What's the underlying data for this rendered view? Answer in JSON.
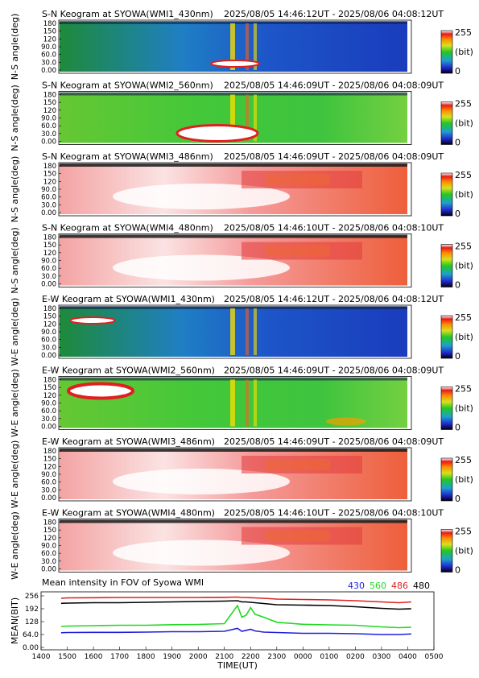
{
  "panels": [
    {
      "title": "S-N Keogram at SYOWA(WMI1_430nm)",
      "range": "2025/08/05 14:46:12UT - 2025/08/06 04:08:12UT",
      "ylabel": "N-S angle(deg)",
      "scheme": "blue"
    },
    {
      "title": "S-N Keogram at SYOWA(WMI2_560nm)",
      "range": "2025/08/05 14:46:09UT - 2025/08/06 04:08:09UT",
      "ylabel": "N-S angle(deg)",
      "scheme": "green"
    },
    {
      "title": "S-N Keogram at SYOWA(WMI3_486nm)",
      "range": "2025/08/05 14:46:09UT - 2025/08/06 04:08:09UT",
      "ylabel": "N-S angle(deg)",
      "scheme": "red"
    },
    {
      "title": "S-N Keogram at SYOWA(WMI4_480nm)",
      "range": "2025/08/05 14:46:10UT - 2025/08/06 04:08:10UT",
      "ylabel": "N-S angle(deg)",
      "scheme": "red"
    },
    {
      "title": "E-W Keogram at SYOWA(WMI1_430nm)",
      "range": "2025/08/05 14:46:12UT - 2025/08/06 04:08:12UT",
      "ylabel": "W-E angle(deg)",
      "scheme": "blue"
    },
    {
      "title": "E-W Keogram at SYOWA(WMI2_560nm)",
      "range": "2025/08/05 14:46:09UT - 2025/08/06 04:08:09UT",
      "ylabel": "W-E angle(deg)",
      "scheme": "green"
    },
    {
      "title": "E-W Keogram at SYOWA(WMI3_486nm)",
      "range": "2025/08/05 14:46:09UT - 2025/08/06 04:08:09UT",
      "ylabel": "W-E angle(deg)",
      "scheme": "red"
    },
    {
      "title": "E-W Keogram at SYOWA(WMI4_480nm)",
      "range": "2025/08/05 14:46:10UT - 2025/08/06 04:08:10UT",
      "ylabel": "W-E angle(deg)",
      "scheme": "red"
    }
  ],
  "keogram_yticks": [
    "180",
    "150",
    "120",
    "90.0",
    "60.0",
    "30.0",
    "0.00"
  ],
  "colorbar": {
    "max": "255",
    "unit": "(bit)",
    "min": "0"
  },
  "chart_data": {
    "type": "line",
    "title": "Mean intensity in FOV of Syowa WMI",
    "xlabel": "TIME(UT)",
    "ylabel": "MEAN(BIT)",
    "x_ticks": [
      "1400",
      "1500",
      "1600",
      "1700",
      "1800",
      "1900",
      "2000",
      "2100",
      "2200",
      "2300",
      "0000",
      "0100",
      "0200",
      "0300",
      "0400",
      "0500"
    ],
    "y_ticks": [
      "256",
      "192",
      "128",
      "64.0",
      "0.00"
    ],
    "ylim": [
      0,
      256
    ],
    "x": [
      "1446",
      "1500",
      "1600",
      "1700",
      "1800",
      "1900",
      "2000",
      "2100",
      "2130",
      "2140",
      "2150",
      "2200",
      "2210",
      "2230",
      "2300",
      "0000",
      "0100",
      "0200",
      "0300",
      "0340",
      "0408"
    ],
    "series": [
      {
        "name": "430",
        "color": "#1f1fd8",
        "values": [
          73,
          74,
          75,
          75,
          76,
          78,
          78,
          80,
          95,
          80,
          85,
          90,
          82,
          76,
          74,
          70,
          70,
          68,
          64,
          64,
          67
        ]
      },
      {
        "name": "560",
        "color": "#22d822",
        "values": [
          104,
          106,
          108,
          110,
          110,
          113,
          114,
          118,
          208,
          150,
          160,
          198,
          165,
          150,
          125,
          115,
          112,
          110,
          102,
          98,
          100
        ]
      },
      {
        "name": "486",
        "color": "#e02020",
        "values": [
          244,
          246,
          247,
          248,
          248,
          248,
          248,
          249,
          250,
          248,
          248,
          247,
          246,
          244,
          240,
          238,
          236,
          232,
          226,
          222,
          226
        ]
      },
      {
        "name": "480",
        "color": "#000000",
        "values": [
          219,
          220,
          222,
          222,
          224,
          226,
          228,
          230,
          232,
          226,
          226,
          224,
          222,
          218,
          212,
          210,
          208,
          202,
          194,
          190,
          192
        ]
      }
    ]
  }
}
